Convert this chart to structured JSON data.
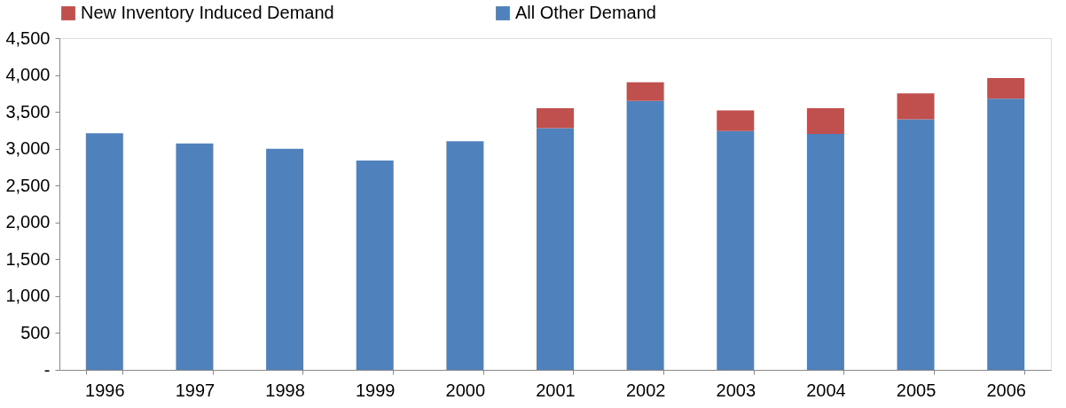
{
  "chart_data": {
    "type": "bar",
    "stacked": true,
    "categories": [
      "1996",
      "1997",
      "1998",
      "1999",
      "2000",
      "2001",
      "2002",
      "2003",
      "2004",
      "2005",
      "2006"
    ],
    "series": [
      {
        "name": "All Other Demand",
        "color": "#4f81bd",
        "values": [
          3210,
          3070,
          3000,
          2840,
          3100,
          3280,
          3650,
          3240,
          3200,
          3400,
          3680
        ]
      },
      {
        "name": "New Inventory Induced Demand",
        "color": "#c0504d",
        "values": [
          0,
          0,
          0,
          0,
          0,
          270,
          250,
          280,
          350,
          350,
          280
        ]
      }
    ],
    "ylim": [
      0,
      4500
    ],
    "yticks": [
      {
        "value": 0,
        "label": "-"
      },
      500,
      {
        "value": 1000,
        "label": "1,000"
      },
      {
        "value": 1500,
        "label": "1,500"
      },
      {
        "value": 2000,
        "label": "2,000"
      },
      {
        "value": 2500,
        "label": "2,500"
      },
      {
        "value": 3000,
        "label": "3,000"
      },
      {
        "value": 3500,
        "label": "3,500"
      },
      {
        "value": 4000,
        "label": "4,000"
      },
      {
        "value": 4500,
        "label": "4,500"
      }
    ],
    "legend": "top",
    "grid": false
  }
}
